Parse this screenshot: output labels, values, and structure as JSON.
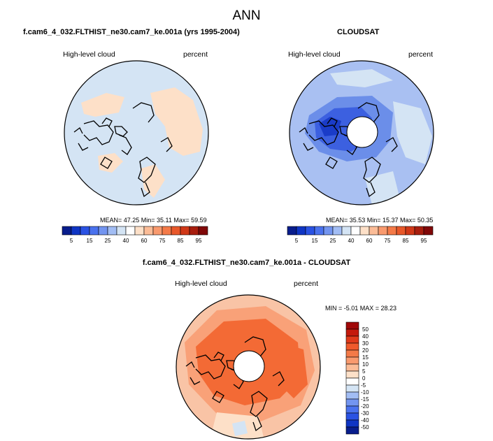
{
  "figure": {
    "title": "ANN",
    "colors": {
      "light_blue": "#d4e4f4",
      "peach": "#fde0c8",
      "blue_mid": "#6b8ee9",
      "blue_dark": "#3c60e0",
      "orange": "#f36a35",
      "orange_light": "#f9a178"
    }
  },
  "panels": {
    "model": {
      "title": "f.cam6_4_032.FLTHIST_ne30.cam7_ke.001a (yrs 1995-2004)",
      "variable": "High-level cloud",
      "units": "percent",
      "stats": "MEAN=  47.25  Min=  35.11  Max=  59.59",
      "colorbar_labels": [
        "5",
        "15",
        "25",
        "40",
        "60",
        "75",
        "85",
        "95"
      ]
    },
    "obs": {
      "title": "CLOUDSAT",
      "variable": "High-level cloud",
      "units": "percent",
      "stats": "MEAN=  35.53  Min=  15.37  Max=  50.35",
      "colorbar_labels": [
        "5",
        "15",
        "25",
        "40",
        "60",
        "75",
        "85",
        "95"
      ]
    },
    "diff": {
      "title": "f.cam6_4_032.FLTHIST_ne30.cam7_ke.001a - CLOUDSAT",
      "variable": "High-level cloud",
      "units": "percent",
      "stats": "MIN =  -5.01  MAX =  28.23",
      "colorbar_labels": [
        "50",
        "40",
        "30",
        "20",
        "15",
        "10",
        "5",
        "0",
        "-5",
        "-10",
        "-15",
        "-20",
        "-30",
        "-40",
        "-50"
      ]
    }
  },
  "chart_data": [
    {
      "type": "heatmap",
      "title": "High-level cloud",
      "units": "percent",
      "mean": 47.25,
      "min": 35.11,
      "max": 59.59,
      "levels": [
        5,
        15,
        25,
        40,
        60,
        75,
        85,
        95
      ]
    },
    {
      "type": "heatmap",
      "title": "High-level cloud",
      "units": "percent",
      "mean": 35.53,
      "min": 15.37,
      "max": 50.35,
      "levels": [
        5,
        15,
        25,
        40,
        60,
        75,
        85,
        95
      ]
    },
    {
      "type": "heatmap",
      "title": "High-level cloud",
      "units": "percent",
      "min": -5.01,
      "max": 28.23,
      "levels": [
        -50,
        -40,
        -30,
        -20,
        -15,
        -10,
        -5,
        0,
        5,
        10,
        15,
        20,
        30,
        40,
        50
      ]
    }
  ]
}
